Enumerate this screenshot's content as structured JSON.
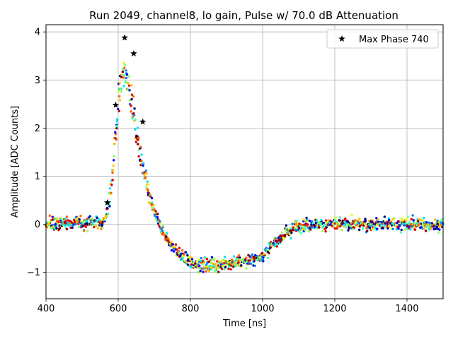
{
  "chart_data": {
    "type": "scatter",
    "title": "Run 2049, channel8, lo gain, Pulse w/ 70.0 dB Attenuation",
    "xlabel": "Time [ns]",
    "ylabel": "Amplitude [ADC Counts]",
    "xlim": [
      400,
      1500
    ],
    "ylim": [
      -1.55,
      4.15
    ],
    "xticks": [
      400,
      600,
      800,
      1000,
      1200,
      1400
    ],
    "yticks": [
      -1,
      0,
      1,
      2,
      3,
      4
    ],
    "grid": true,
    "legend_position": "top-right",
    "colormap": [
      "#00007f",
      "#0000ff",
      "#0080ff",
      "#00e0ff",
      "#40ffb0",
      "#90ff60",
      "#e0ff10",
      "#ffc000",
      "#ff6000",
      "#e00000",
      "#800000"
    ],
    "pulse_profile": {
      "x": [
        400,
        560,
        575,
        590,
        600,
        610,
        620,
        630,
        640,
        650,
        660,
        670,
        680,
        690,
        700,
        720,
        740,
        760,
        780,
        800,
        830,
        860,
        900,
        950,
        980,
        1000,
        1020,
        1040,
        1060,
        1080,
        1100,
        1150,
        1200,
        1300,
        1400,
        1500
      ],
      "y": [
        0.0,
        0.05,
        0.4,
        1.6,
        2.5,
        3.1,
        3.1,
        2.8,
        2.4,
        1.9,
        1.5,
        1.1,
        0.8,
        0.5,
        0.25,
        -0.1,
        -0.35,
        -0.55,
        -0.7,
        -0.8,
        -0.85,
        -0.85,
        -0.82,
        -0.78,
        -0.72,
        -0.65,
        -0.5,
        -0.35,
        -0.2,
        -0.1,
        -0.02,
        0.0,
        0.0,
        0.0,
        0.0,
        0.0
      ]
    },
    "series": [
      {
        "name": "Max Phase 740",
        "marker": "star",
        "color": "#000000",
        "x": [
          570,
          593,
          618,
          643,
          668
        ],
        "y": [
          0.45,
          2.48,
          3.88,
          3.55,
          2.13
        ]
      }
    ]
  }
}
